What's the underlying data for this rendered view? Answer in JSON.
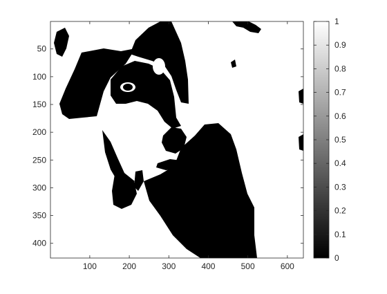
{
  "chart_data": {
    "type": "heatmap",
    "colormap": "gray",
    "image_description": "binarized grayscale photo of a dog's head (black and white regions)",
    "x_ticks": [
      "100",
      "200",
      "300",
      "400",
      "500",
      "600"
    ],
    "x_tick_values": [
      100,
      200,
      300,
      400,
      500,
      600
    ],
    "y_ticks": [
      "50",
      "100",
      "150",
      "200",
      "250",
      "300",
      "350",
      "400"
    ],
    "y_tick_values": [
      50,
      100,
      150,
      200,
      250,
      300,
      350,
      400
    ],
    "xlim": [
      0.5,
      640.5
    ],
    "ylim": [
      0.5,
      426.5
    ],
    "y_reversed": true,
    "colorbar": {
      "ticks": [
        "0",
        "0.1",
        "0.2",
        "0.3",
        "0.4",
        "0.5",
        "0.6",
        "0.7",
        "0.8",
        "0.9",
        "1"
      ],
      "tick_values": [
        0,
        0.1,
        0.2,
        0.3,
        0.4,
        0.5,
        0.6,
        0.7,
        0.8,
        0.9,
        1
      ],
      "range": [
        0,
        1
      ]
    },
    "title": "",
    "xlabel": "",
    "ylabel": ""
  }
}
